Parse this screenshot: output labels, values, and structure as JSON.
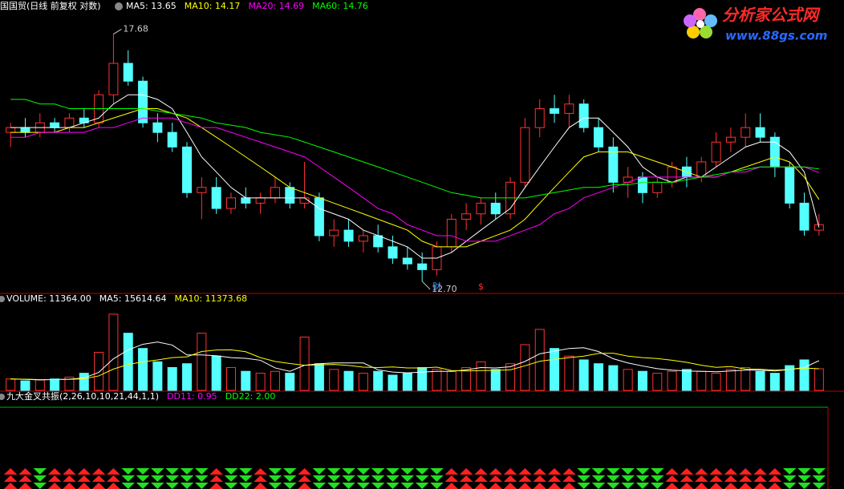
{
  "chart_data": [
    {
      "type": "candlestick",
      "title": "国国贸(日线 前复权 对数)",
      "log_scale": true,
      "ylim": [
        12.55,
        18.15
      ],
      "up_color": "#ff3232",
      "down_color": "#54ffff",
      "open": [
        15.5,
        15.6,
        15.5,
        15.7,
        15.6,
        15.8,
        15.7,
        16.3,
        17.0,
        16.6,
        15.7,
        15.5,
        15.2,
        14.3,
        14.4,
        14.0,
        14.2,
        14.1,
        14.2,
        14.4,
        14.1,
        14.2,
        13.5,
        13.6,
        13.4,
        13.5,
        13.3,
        13.1,
        13.0,
        12.9,
        13.3,
        13.8,
        13.9,
        14.1,
        13.9,
        14.5,
        15.6,
        16.0,
        15.9,
        16.1,
        15.6,
        15.2,
        14.5,
        14.6,
        14.3,
        14.5,
        14.8,
        14.6,
        14.9,
        15.3,
        15.4,
        15.6,
        15.4,
        14.8,
        14.1,
        13.6
      ],
      "high": [
        15.7,
        15.8,
        15.9,
        15.8,
        15.9,
        16.0,
        16.4,
        17.68,
        17.3,
        16.7,
        15.9,
        15.7,
        15.3,
        14.6,
        14.6,
        14.3,
        14.4,
        14.3,
        14.6,
        14.5,
        14.9,
        14.3,
        13.8,
        13.8,
        13.6,
        13.7,
        13.5,
        13.3,
        13.2,
        13.4,
        13.9,
        14.1,
        14.2,
        14.3,
        14.6,
        15.8,
        16.2,
        16.3,
        16.3,
        16.2,
        15.8,
        15.4,
        14.8,
        14.7,
        14.6,
        14.9,
        15.0,
        15.0,
        15.5,
        15.6,
        15.9,
        15.9,
        15.5,
        14.9,
        14.3,
        13.9
      ],
      "low": [
        15.2,
        15.4,
        15.4,
        15.5,
        15.5,
        15.6,
        15.6,
        16.1,
        16.5,
        15.6,
        15.3,
        15.1,
        14.2,
        13.8,
        13.9,
        13.9,
        14.0,
        13.9,
        14.1,
        14.0,
        14.0,
        13.4,
        13.3,
        13.3,
        13.2,
        13.2,
        13.0,
        12.9,
        12.7,
        12.8,
        13.2,
        13.6,
        13.7,
        13.8,
        13.8,
        14.4,
        15.4,
        15.7,
        15.6,
        15.5,
        15.1,
        14.3,
        14.2,
        14.1,
        14.2,
        14.4,
        14.4,
        14.5,
        14.8,
        15.1,
        15.2,
        15.3,
        14.6,
        14.0,
        13.5,
        13.5
      ],
      "close": [
        15.6,
        15.5,
        15.7,
        15.6,
        15.8,
        15.7,
        16.3,
        17.0,
        16.6,
        15.7,
        15.5,
        15.2,
        14.3,
        14.4,
        14.0,
        14.2,
        14.1,
        14.2,
        14.4,
        14.1,
        14.2,
        13.5,
        13.6,
        13.4,
        13.5,
        13.3,
        13.1,
        13.0,
        12.9,
        13.3,
        13.8,
        13.9,
        14.1,
        13.9,
        14.5,
        15.6,
        16.0,
        15.9,
        16.1,
        15.6,
        15.2,
        14.5,
        14.6,
        14.3,
        14.5,
        14.8,
        14.6,
        14.9,
        15.3,
        15.4,
        15.6,
        15.4,
        14.8,
        14.1,
        13.6,
        13.7
      ],
      "lines": [
        {
          "label": "MA5: 13.65",
          "color": "#ffffff",
          "values": [
            15.6,
            15.6,
            15.6,
            15.6,
            15.6,
            15.7,
            15.8,
            16.1,
            16.3,
            16.3,
            16.2,
            16.0,
            15.5,
            15.0,
            14.7,
            14.4,
            14.2,
            14.2,
            14.2,
            14.2,
            14.2,
            14.0,
            13.9,
            13.8,
            13.6,
            13.5,
            13.4,
            13.3,
            13.1,
            13.1,
            13.2,
            13.4,
            13.6,
            13.8,
            14.0,
            14.4,
            14.8,
            15.2,
            15.6,
            15.8,
            15.8,
            15.5,
            15.2,
            14.8,
            14.6,
            14.5,
            14.6,
            14.6,
            14.8,
            15.0,
            15.2,
            15.3,
            15.3,
            15.1,
            14.7,
            13.65
          ]
        },
        {
          "label": "MA10: 14.17",
          "color": "#ffff00",
          "values": [
            15.5,
            15.5,
            15.5,
            15.5,
            15.6,
            15.6,
            15.7,
            15.8,
            15.9,
            16.0,
            16.0,
            15.9,
            15.8,
            15.6,
            15.4,
            15.2,
            15.0,
            14.8,
            14.6,
            14.4,
            14.3,
            14.2,
            14.1,
            14.0,
            13.9,
            13.8,
            13.7,
            13.6,
            13.4,
            13.3,
            13.3,
            13.3,
            13.4,
            13.5,
            13.6,
            13.8,
            14.1,
            14.4,
            14.7,
            15.0,
            15.1,
            15.1,
            15.1,
            15.0,
            14.9,
            14.8,
            14.7,
            14.6,
            14.6,
            14.7,
            14.8,
            14.9,
            15.0,
            14.9,
            14.6,
            14.17
          ]
        },
        {
          "label": "MA20: 14.69",
          "color": "#ff00ff",
          "values": [
            15.4,
            15.4,
            15.5,
            15.5,
            15.5,
            15.5,
            15.6,
            15.6,
            15.7,
            15.8,
            15.8,
            15.8,
            15.7,
            15.6,
            15.6,
            15.5,
            15.4,
            15.3,
            15.2,
            15.1,
            15.0,
            14.8,
            14.6,
            14.4,
            14.2,
            14.0,
            13.9,
            13.7,
            13.6,
            13.5,
            13.5,
            13.4,
            13.4,
            13.4,
            13.5,
            13.6,
            13.7,
            13.9,
            14.0,
            14.2,
            14.3,
            14.4,
            14.5,
            14.6,
            14.6,
            14.6,
            14.6,
            14.6,
            14.6,
            14.7,
            14.7,
            14.8,
            14.8,
            14.8,
            14.8,
            14.69
          ]
        },
        {
          "label": "MA60: 14.76",
          "color": "#00ff00",
          "values": [
            16.2,
            16.2,
            16.1,
            16.1,
            16.0,
            16.0,
            16.0,
            16.0,
            16.0,
            16.0,
            15.95,
            15.9,
            15.85,
            15.8,
            15.7,
            15.65,
            15.6,
            15.5,
            15.45,
            15.4,
            15.3,
            15.2,
            15.1,
            15.0,
            14.9,
            14.8,
            14.7,
            14.6,
            14.5,
            14.4,
            14.3,
            14.25,
            14.2,
            14.2,
            14.2,
            14.2,
            14.25,
            14.3,
            14.35,
            14.4,
            14.4,
            14.45,
            14.45,
            14.5,
            14.5,
            14.5,
            14.55,
            14.6,
            14.65,
            14.7,
            14.75,
            14.8,
            14.8,
            14.8,
            14.8,
            14.76
          ]
        }
      ],
      "annotations": [
        {
          "label": "17.68",
          "value": 17.68
        },
        {
          "label": "12.70",
          "value": 12.7
        }
      ],
      "events": [
        {
          "label": "财",
          "index": 29,
          "color": "#5599ff"
        },
        {
          "label": "$",
          "index": 32,
          "color": "#ff3232"
        }
      ]
    },
    {
      "type": "volume",
      "label": "VOLUME: 11364.00",
      "ylim": [
        0,
        45000
      ],
      "values": [
        6000,
        5000,
        5500,
        6000,
        7000,
        9000,
        20000,
        40000,
        30000,
        22000,
        15000,
        12000,
        14000,
        30000,
        18000,
        12000,
        10000,
        9000,
        10000,
        9000,
        28000,
        14000,
        11000,
        10000,
        9000,
        10000,
        8000,
        9000,
        12000,
        11000,
        10000,
        12000,
        15000,
        11000,
        14000,
        24000,
        32000,
        22000,
        18000,
        16000,
        14000,
        13000,
        11000,
        10000,
        9000,
        10000,
        11000,
        10000,
        9000,
        11000,
        12000,
        10000,
        9000,
        13000,
        16000,
        11364
      ],
      "lines": [
        {
          "label": "MA5: 15614.64",
          "color": "#ffffff",
          "values": [
            6000,
            5800,
            5500,
            5700,
            5900,
            6500,
            9500,
            16600,
            21200,
            24200,
            25400,
            23800,
            18600,
            18600,
            18200,
            17200,
            16800,
            15800,
            11800,
            10000,
            13200,
            14000,
            14400,
            14400,
            14400,
            10800,
            9600,
            9200,
            9600,
            10000,
            10000,
            10800,
            12000,
            11800,
            12400,
            15200,
            19200,
            20600,
            22000,
            22400,
            20400,
            16600,
            14400,
            12800,
            11400,
            10600,
            10200,
            10000,
            9800,
            10200,
            10600,
            10600,
            10200,
            11000,
            12000,
            15614.64
          ]
        },
        {
          "label": "MA10: 11373.68",
          "color": "#ffff00",
          "values": [
            6000,
            5900,
            5700,
            5700,
            5800,
            6100,
            7600,
            11200,
            13600,
            15000,
            16000,
            17200,
            17600,
            20400,
            21200,
            21300,
            20300,
            17200,
            15200,
            14100,
            13200,
            13400,
            13600,
            13100,
            12200,
            12000,
            12300,
            11800,
            11800,
            12200,
            10400,
            10200,
            10400,
            10500,
            10800,
            12900,
            15300,
            16300,
            17200,
            18000,
            19400,
            19500,
            18000,
            17200,
            16700,
            15800,
            14700,
            13200,
            12100,
            12500,
            11200,
            11100,
            10600,
            11000,
            11700,
            11373.68
          ]
        }
      ]
    },
    {
      "type": "signal",
      "label": "九大金叉共振(2,26,10,10,21,44,1,1)",
      "texts": [
        {
          "label": "DD11: 0.95",
          "color": "#ff00ff"
        },
        {
          "label": "DD22: 2.00",
          "color": "#00ff00"
        }
      ],
      "up_color": "#ff2020",
      "down_color": "#22dd22",
      "values": [
        1,
        1,
        -1,
        1,
        1,
        1,
        1,
        1,
        -1,
        -1,
        -1,
        -1,
        -1,
        -1,
        1,
        -1,
        -1,
        1,
        -1,
        -1,
        1,
        -1,
        -1,
        -1,
        -1,
        -1,
        -1,
        -1,
        -1,
        -1,
        1,
        1,
        1,
        1,
        1,
        1,
        1,
        1,
        1,
        -1,
        -1,
        -1,
        -1,
        -1,
        -1,
        1,
        1,
        1,
        1,
        1,
        1,
        1,
        1,
        -1,
        -1,
        -1
      ]
    }
  ],
  "watermark": {
    "title": "分析家公式网",
    "url": "www.88gs.com"
  }
}
